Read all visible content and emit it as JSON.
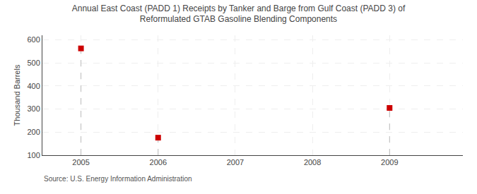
{
  "chart_data": {
    "type": "scatter",
    "title": "Annual East Coast (PADD 1) Receipts by Tanker and Barge from Gulf Coast (PADD 3) of\nReformulated GTAB Gasoline Blending Components",
    "ylabel": "Thousand Barrels",
    "source": "Source: U.S. Energy Information Administration",
    "x": [
      2005,
      2006,
      2009
    ],
    "values": [
      563,
      176,
      305
    ],
    "xlim": [
      2004.5,
      2009.95
    ],
    "ylim": [
      100,
      620
    ],
    "xticks": [
      2005,
      2006,
      2007,
      2008,
      2009
    ],
    "yticks": [
      100,
      200,
      300,
      400,
      500,
      600
    ],
    "color": "#cc0000",
    "marker": "square",
    "grid": true
  }
}
